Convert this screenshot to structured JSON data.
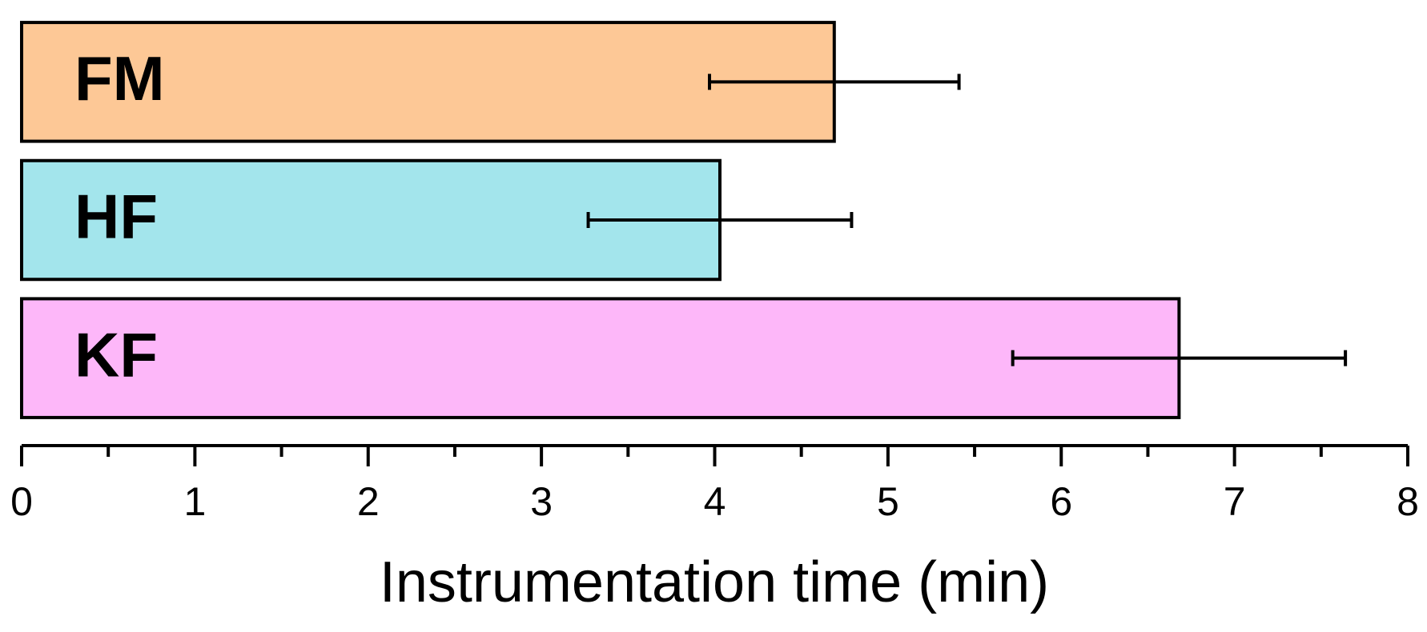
{
  "chart_data": {
    "type": "barh",
    "xlabel": "Instrumentation time (min)",
    "categories": [
      "FM",
      "HF",
      "KF"
    ],
    "values": [
      4.69,
      4.03,
      6.68
    ],
    "errors": [
      0.72,
      0.76,
      0.96
    ],
    "colors": [
      "#fdc896",
      "#a3e5ec",
      "#fdb7f9"
    ],
    "xlim": [
      0,
      8
    ],
    "xticks": [
      0,
      1,
      2,
      3,
      4,
      5,
      6,
      7,
      8
    ],
    "minor_xticks": [
      0.5,
      1.5,
      2.5,
      3.5,
      4.5,
      5.5,
      6.5,
      7.5
    ]
  }
}
